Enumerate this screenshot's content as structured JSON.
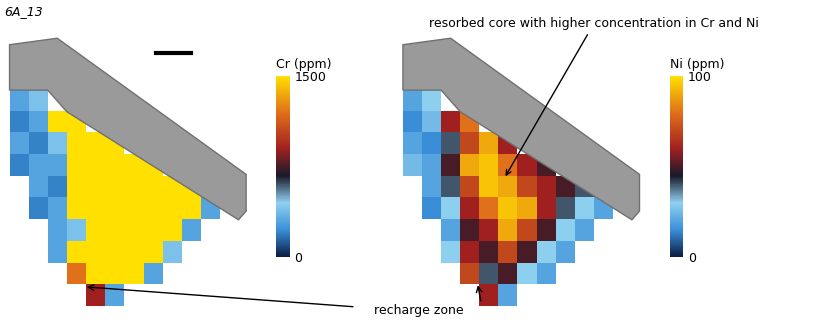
{
  "panel_label": "6A_13",
  "shared_annotation": "recharge zone",
  "chart_data": [
    {
      "type": "heatmap",
      "colorbar_label": "Cr (ppm)",
      "colorbar_range": [
        0,
        1500
      ],
      "colorbar_ticks": [
        0,
        1500
      ],
      "cells": [
        [
          300,
          400,
          null,
          null,
          null,
          null,
          null,
          null,
          null,
          null,
          null,
          null
        ],
        [
          200,
          300,
          1500,
          1500,
          null,
          null,
          null,
          null,
          null,
          null,
          null,
          null
        ],
        [
          300,
          200,
          400,
          1500,
          1500,
          1500,
          null,
          null,
          null,
          null,
          null,
          null
        ],
        [
          200,
          300,
          300,
          1500,
          1500,
          1500,
          1500,
          1500,
          null,
          null,
          null,
          null
        ],
        [
          null,
          300,
          200,
          1500,
          1500,
          1500,
          1500,
          1500,
          1500,
          1500,
          null,
          null
        ],
        [
          null,
          200,
          300,
          1500,
          1500,
          1500,
          1500,
          1500,
          1500,
          1500,
          300,
          null
        ],
        [
          null,
          null,
          300,
          400,
          1500,
          1500,
          1500,
          1500,
          1500,
          300,
          null,
          null
        ],
        [
          null,
          null,
          300,
          1500,
          1500,
          1500,
          1500,
          1500,
          400,
          null,
          null,
          null
        ],
        [
          null,
          null,
          null,
          1200,
          1500,
          1500,
          1500,
          300,
          null,
          null,
          null,
          null
        ],
        [
          null,
          null,
          null,
          null,
          900,
          300,
          null,
          null,
          null,
          null,
          null,
          null
        ]
      ]
    },
    {
      "type": "heatmap",
      "colorbar_label": "Ni (ppm)",
      "colorbar_range": [
        0,
        100
      ],
      "colorbar_ticks": [
        0,
        100
      ],
      "annotation": "resorbed core with higher concentration in Cr and Ni",
      "cells": [
        [
          20,
          30,
          null,
          null,
          null,
          null,
          null,
          null,
          null,
          null,
          null,
          null
        ],
        [
          15,
          25,
          60,
          80,
          null,
          null,
          null,
          null,
          null,
          null,
          null,
          null
        ],
        [
          20,
          15,
          40,
          70,
          90,
          60,
          null,
          null,
          null,
          null,
          null,
          null
        ],
        [
          25,
          20,
          50,
          90,
          95,
          80,
          60,
          50,
          null,
          null,
          null,
          null
        ],
        [
          null,
          20,
          40,
          70,
          95,
          90,
          70,
          60,
          50,
          40,
          null,
          null
        ],
        [
          null,
          15,
          30,
          60,
          80,
          95,
          90,
          60,
          40,
          30,
          20,
          null
        ],
        [
          null,
          null,
          20,
          50,
          60,
          90,
          70,
          50,
          30,
          20,
          null,
          null
        ],
        [
          null,
          null,
          30,
          60,
          50,
          70,
          50,
          30,
          20,
          null,
          null,
          null
        ],
        [
          null,
          null,
          null,
          70,
          40,
          50,
          30,
          20,
          null,
          null,
          null,
          null
        ],
        [
          null,
          null,
          null,
          null,
          60,
          20,
          null,
          null,
          null,
          null,
          null,
          null
        ]
      ]
    }
  ]
}
